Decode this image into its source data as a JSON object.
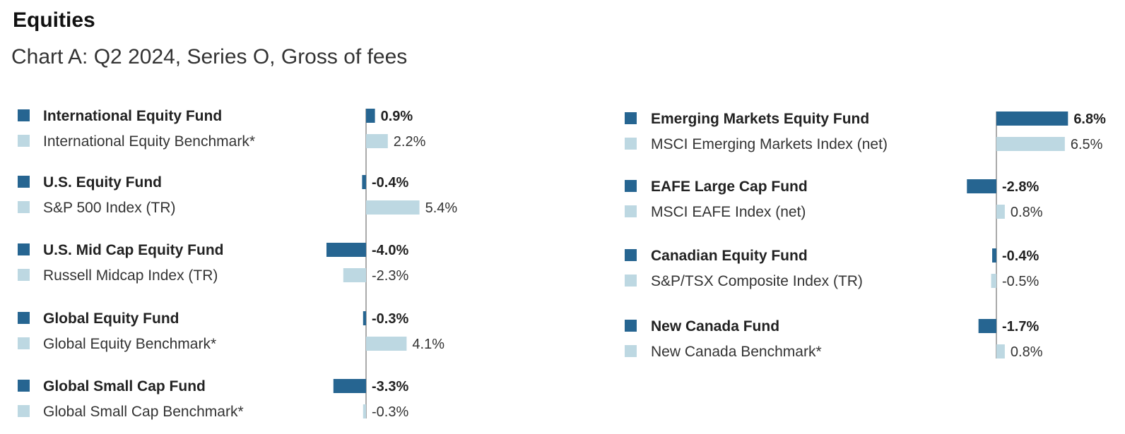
{
  "header": {
    "title": "Equities",
    "subtitle": "Chart A: Q2 2024, Series O, Gross of fees"
  },
  "colors": {
    "fund": "#266591",
    "benchmark": "#bdd8e2",
    "axis": "#555555"
  },
  "chart_data": [
    {
      "type": "bar",
      "orientation": "horizontal",
      "name": "left-panel",
      "groups": [
        {
          "fund": {
            "label": "International Equity Fund",
            "value": 0.9,
            "text": "0.9%"
          },
          "benchmark": {
            "label": "International Equity Benchmark*",
            "value": 2.2,
            "text": "2.2%"
          }
        },
        {
          "fund": {
            "label": "U.S. Equity Fund",
            "value": -0.4,
            "text": "-0.4%"
          },
          "benchmark": {
            "label": "S&P 500 Index (TR)",
            "value": 5.4,
            "text": "5.4%"
          }
        },
        {
          "fund": {
            "label": "U.S. Mid Cap Equity Fund",
            "value": -4.0,
            "text": "-4.0%"
          },
          "benchmark": {
            "label": "Russell Midcap Index (TR)",
            "value": -2.3,
            "text": "-2.3%"
          }
        },
        {
          "fund": {
            "label": "Global Equity Fund",
            "value": -0.3,
            "text": "-0.3%"
          },
          "benchmark": {
            "label": "Global Equity Benchmark*",
            "value": 4.1,
            "text": "4.1%"
          }
        },
        {
          "fund": {
            "label": "Global Small Cap Fund",
            "value": -3.3,
            "text": "-3.3%"
          },
          "benchmark": {
            "label": "Global Small Cap Benchmark*",
            "value": -0.3,
            "text": "-0.3%"
          }
        }
      ]
    },
    {
      "type": "bar",
      "orientation": "horizontal",
      "name": "right-panel",
      "groups": [
        {
          "fund": {
            "label": "Emerging Markets Equity Fund",
            "value": 6.8,
            "text": "6.8%"
          },
          "benchmark": {
            "label": "MSCI Emerging Markets Index (net)",
            "value": 6.5,
            "text": "6.5%"
          }
        },
        {
          "fund": {
            "label": "EAFE Large Cap Fund",
            "value": -2.8,
            "text": "-2.8%"
          },
          "benchmark": {
            "label": "MSCI EAFE Index (net)",
            "value": 0.8,
            "text": "0.8%"
          }
        },
        {
          "fund": {
            "label": "Canadian Equity Fund",
            "value": -0.4,
            "text": "-0.4%"
          },
          "benchmark": {
            "label": "S&P/TSX Composite Index (TR)",
            "value": -0.5,
            "text": "-0.5%"
          }
        },
        {
          "fund": {
            "label": "New Canada Fund",
            "value": -1.7,
            "text": "-1.7%"
          },
          "benchmark": {
            "label": "New Canada Benchmark*",
            "value": 0.8,
            "text": "0.8%"
          }
        }
      ]
    }
  ]
}
